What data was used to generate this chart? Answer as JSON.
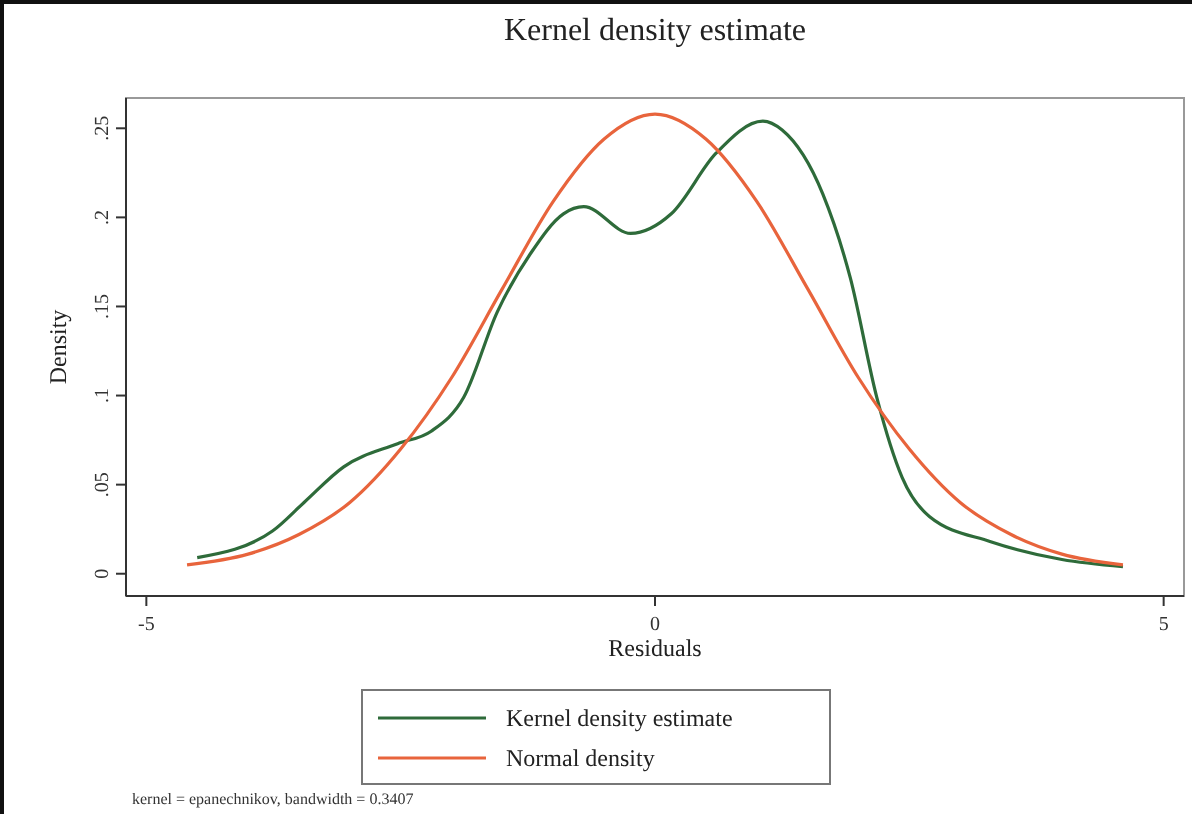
{
  "chart_data": {
    "type": "line",
    "title": "Kernel density estimate",
    "xlabel": "Residuals",
    "ylabel": "Density",
    "annotations": [
      "kernel = epanechnikov, bandwidth = 0.3407"
    ],
    "xlim": [
      -5.2,
      5.2
    ],
    "xticks": [
      -5,
      0,
      5
    ],
    "ylim": [
      -0.0125,
      0.267
    ],
    "yticks": [
      0,
      {
        "value": 0.05,
        "label": ".05"
      },
      {
        "value": 0.1,
        "label": ".1"
      },
      {
        "value": 0.15,
        "label": ".15"
      },
      {
        "value": 0.2,
        "label": ".2"
      },
      {
        "value": 0.25,
        "label": ".25"
      }
    ],
    "legend": "bottom",
    "line_style": "solid",
    "marker": "none",
    "series": [
      {
        "name": "Kernel density estimate",
        "color": "#2e6b3a",
        "x": [
          -4.5,
          -3.76,
          -3.45,
          -3.06,
          -2.53,
          -2.2,
          -1.88,
          -1.55,
          -1.22,
          -0.9,
          -0.7,
          -0.24,
          0.16,
          0.6,
          1.06,
          1.25,
          1.65,
          1.92,
          2.18,
          2.43,
          2.7,
          3.3,
          4.0,
          4.6
        ],
        "values": [
          0.009,
          0.024,
          0.04,
          0.06,
          0.073,
          0.08,
          0.099,
          0.147,
          0.18,
          0.202,
          0.206,
          0.191,
          0.202,
          0.236,
          0.254,
          0.249,
          0.213,
          0.166,
          0.099,
          0.054,
          0.032,
          0.018,
          0.008,
          0.004
        ]
      },
      {
        "name": "Normal density",
        "color": "#e8643c",
        "x": [
          -4.6,
          -4,
          -3.5,
          -3,
          -2.5,
          -2,
          -1.5,
          -1,
          -0.5,
          0,
          0.5,
          1,
          1.5,
          2,
          2.5,
          3,
          3.5,
          4,
          4.6
        ],
        "values": [
          0.005,
          0.011,
          0.022,
          0.04,
          0.07,
          0.11,
          0.16,
          0.209,
          0.244,
          0.258,
          0.244,
          0.209,
          0.16,
          0.11,
          0.07,
          0.04,
          0.022,
          0.011,
          0.005
        ]
      }
    ]
  }
}
